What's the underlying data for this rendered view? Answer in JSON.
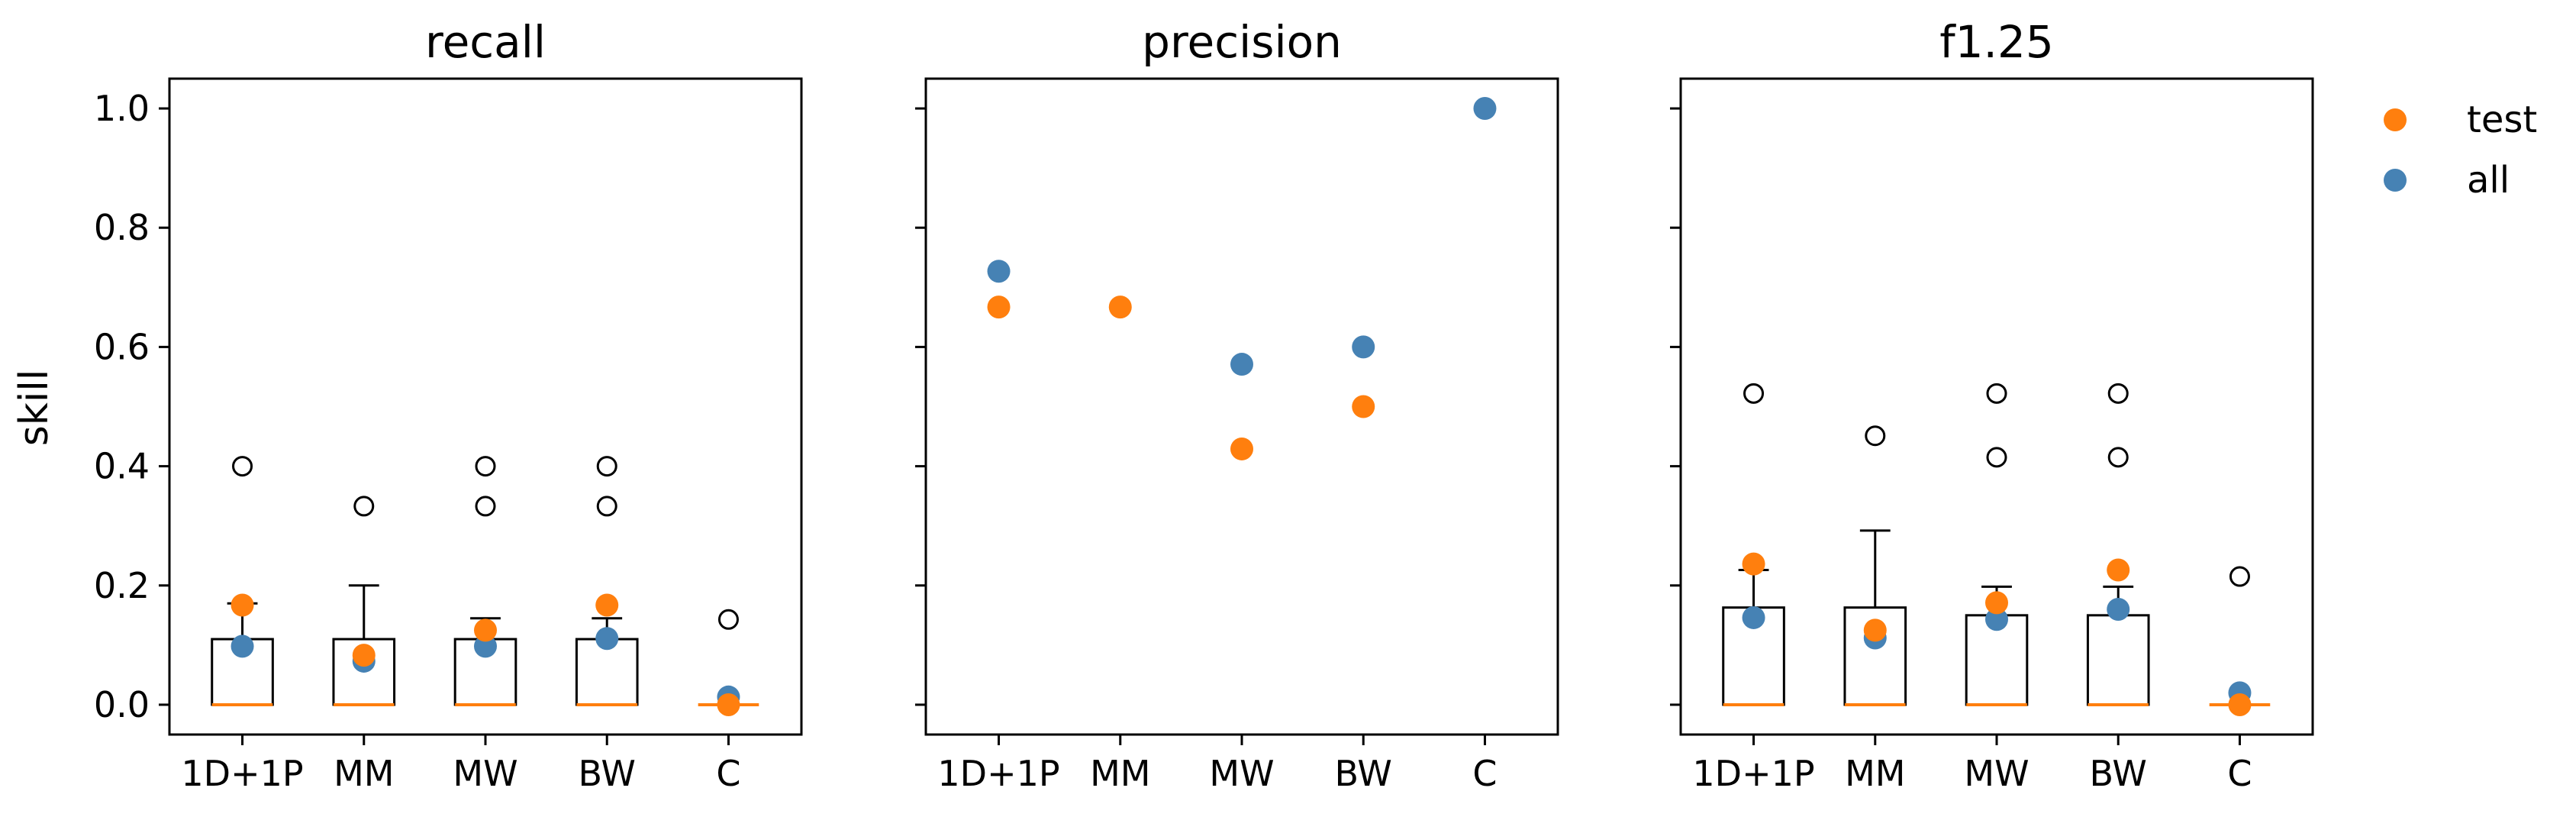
{
  "chart_data": {
    "type": "box",
    "ylabel": "skill",
    "ylim": [
      -0.05,
      1.05
    ],
    "yticks": [
      0.0,
      0.2,
      0.4,
      0.6,
      0.8,
      1.0
    ],
    "yticklabels": [
      "0.0",
      "0.2",
      "0.4",
      "0.6",
      "0.8",
      "1.0"
    ],
    "categories": [
      "1D+1P",
      "MM",
      "MW",
      "BW",
      "C"
    ],
    "legend": {
      "placement": "upper-right-outside",
      "entries": [
        {
          "name": "test",
          "color": "#ff7f0e"
        },
        {
          "name": "all",
          "color": "#4682b4"
        }
      ]
    },
    "colors": {
      "test": "#ff7f0e",
      "all": "#4682b4",
      "median": "#ff7f0e",
      "box": "#000000"
    },
    "panels": [
      {
        "title": "recall",
        "boxes": [
          {
            "q1": 0.0,
            "median": 0.0,
            "q3": 0.11,
            "whisker_low": 0.0,
            "whisker_high": 0.17,
            "fliers": [
              0.4
            ]
          },
          {
            "q1": 0.0,
            "median": 0.0,
            "q3": 0.11,
            "whisker_low": 0.0,
            "whisker_high": 0.2,
            "fliers": [
              0.333
            ]
          },
          {
            "q1": 0.0,
            "median": 0.0,
            "q3": 0.11,
            "whisker_low": 0.0,
            "whisker_high": 0.145,
            "fliers": [
              0.333,
              0.4
            ]
          },
          {
            "q1": 0.0,
            "median": 0.0,
            "q3": 0.11,
            "whisker_low": 0.0,
            "whisker_high": 0.145,
            "fliers": [
              0.333,
              0.4
            ]
          },
          {
            "q1": 0.0,
            "median": 0.0,
            "q3": 0.0,
            "whisker_low": 0.0,
            "whisker_high": 0.0,
            "fliers": [
              0.143
            ]
          }
        ],
        "points": {
          "test": [
            0.167,
            0.083,
            0.125,
            0.167,
            0.0
          ],
          "all": [
            0.098,
            0.073,
            0.098,
            0.111,
            0.013
          ]
        }
      },
      {
        "title": "precision",
        "boxes": [],
        "points": {
          "test": [
            0.667,
            0.667,
            0.429,
            0.5,
            null
          ],
          "all": [
            0.727,
            null,
            0.571,
            0.6,
            1.0
          ]
        }
      },
      {
        "title": "f1.25",
        "boxes": [
          {
            "q1": 0.0,
            "median": 0.0,
            "q3": 0.163,
            "whisker_low": 0.0,
            "whisker_high": 0.226,
            "fliers": [
              0.522
            ]
          },
          {
            "q1": 0.0,
            "median": 0.0,
            "q3": 0.163,
            "whisker_low": 0.0,
            "whisker_high": 0.292,
            "fliers": [
              0.451
            ]
          },
          {
            "q1": 0.0,
            "median": 0.0,
            "q3": 0.15,
            "whisker_low": 0.0,
            "whisker_high": 0.198,
            "fliers": [
              0.415,
              0.522
            ]
          },
          {
            "q1": 0.0,
            "median": 0.0,
            "q3": 0.15,
            "whisker_low": 0.0,
            "whisker_high": 0.198,
            "fliers": [
              0.415,
              0.522
            ]
          },
          {
            "q1": 0.0,
            "median": 0.0,
            "q3": 0.0,
            "whisker_low": 0.0,
            "whisker_high": 0.0,
            "fliers": [
              0.215
            ]
          }
        ],
        "points": {
          "test": [
            0.236,
            0.125,
            0.171,
            0.226,
            0.0
          ],
          "all": [
            0.146,
            0.112,
            0.143,
            0.16,
            0.02
          ]
        }
      }
    ]
  }
}
